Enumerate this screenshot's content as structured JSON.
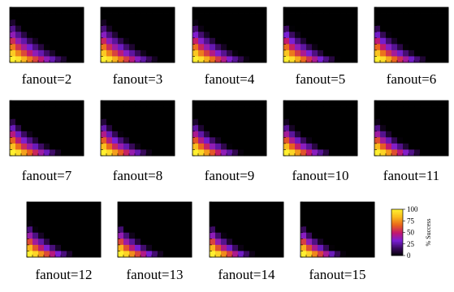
{
  "chart_data": {
    "type": "heatmap",
    "subplot_titles": [
      "fanout=2",
      "fanout=3",
      "fanout=4",
      "fanout=5",
      "fanout=6",
      "fanout=7",
      "fanout=8",
      "fanout=9",
      "fanout=10",
      "fanout=11",
      "fanout=12",
      "fanout=13",
      "fanout=14",
      "fanout=15"
    ],
    "grid_size": [
      9,
      13
    ],
    "colorbar": {
      "label": "% Success",
      "ticks": [
        "100",
        "75",
        "50",
        "25",
        "0"
      ],
      "range": [
        0,
        100
      ]
    },
    "colormap_stops": [
      "#000000",
      "#3a0a5e",
      "#7a1fd6",
      "#c2186e",
      "#e8631c",
      "#f8b61c",
      "#ffef30"
    ]
  }
}
